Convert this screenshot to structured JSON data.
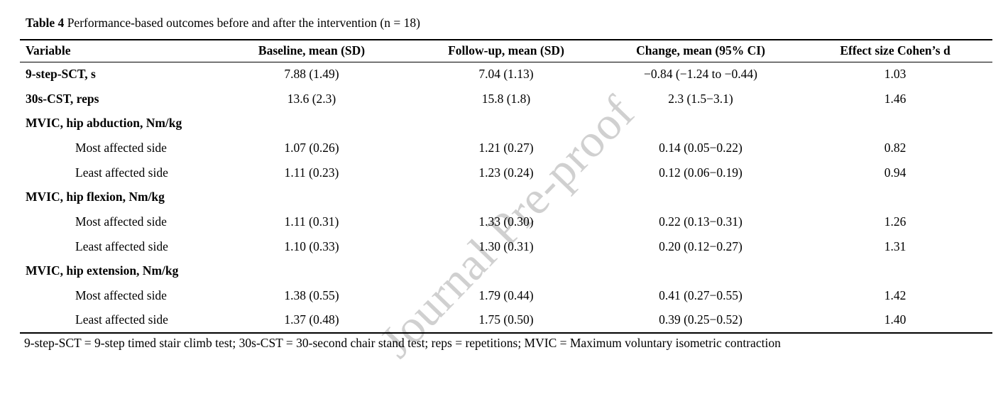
{
  "watermark": {
    "text": "Journal Pre-proof",
    "color": "#d0d0d0"
  },
  "table": {
    "caption_label": "Table 4",
    "caption_text": " Performance-based outcomes before and after the intervention (n = 18)",
    "columns": {
      "variable": "Variable",
      "baseline": "Baseline, mean (SD)",
      "followup": "Follow-up, mean (SD)",
      "change": "Change, mean (95% CI)",
      "effect": "Effect size Cohen’s d"
    },
    "rows": [
      {
        "variable": "9-step-SCT, s",
        "baseline": "7.88 (1.49)",
        "followup": "7.04 (1.13)",
        "change": "−0.84 (−1.24 to −0.44)",
        "effect": "1.03"
      },
      {
        "variable": "30s-CST, reps",
        "baseline": "13.6 (2.3)",
        "followup": "15.8 (1.8)",
        "change": "2.3 (1.5−3.1)",
        "effect": "1.46"
      },
      {
        "variable": "MVIC, hip abduction, Nm/kg",
        "baseline": "",
        "followup": "",
        "change": "",
        "effect": ""
      },
      {
        "variable": "Most affected side",
        "baseline": "1.07 (0.26)",
        "followup": "1.21 (0.27)",
        "change": "0.14 (0.05−0.22)",
        "effect": "0.82"
      },
      {
        "variable": "Least affected side",
        "baseline": "1.11 (0.23)",
        "followup": "1.23 (0.24)",
        "change": "0.12 (0.06−0.19)",
        "effect": "0.94"
      },
      {
        "variable": "MVIC, hip flexion, Nm/kg",
        "baseline": "",
        "followup": "",
        "change": "",
        "effect": ""
      },
      {
        "variable": "Most affected side",
        "baseline": "1.11 (0.31)",
        "followup": "1.33 (0.30)",
        "change": "0.22 (0.13−0.31)",
        "effect": "1.26"
      },
      {
        "variable": "Least affected side",
        "baseline": "1.10 (0.33)",
        "followup": "1.30 (0.31)",
        "change": "0.20 (0.12−0.27)",
        "effect": "1.31"
      },
      {
        "variable": "MVIC, hip extension, Nm/kg",
        "baseline": "",
        "followup": "",
        "change": "",
        "effect": ""
      },
      {
        "variable": "Most affected side",
        "baseline": "1.38 (0.55)",
        "followup": "1.79 (0.44)",
        "change": "0.41 (0.27−0.55)",
        "effect": "1.42"
      },
      {
        "variable": "Least affected side",
        "baseline": "1.37 (0.48)",
        "followup": "1.75 (0.50)",
        "change": "0.39 (0.25−0.52)",
        "effect": "1.40"
      }
    ],
    "footnote": "9-step-SCT = 9-step timed stair climb test; 30s-CST = 30-second chair stand test; reps = repetitions; MVIC = Maximum voluntary isometric contraction"
  }
}
